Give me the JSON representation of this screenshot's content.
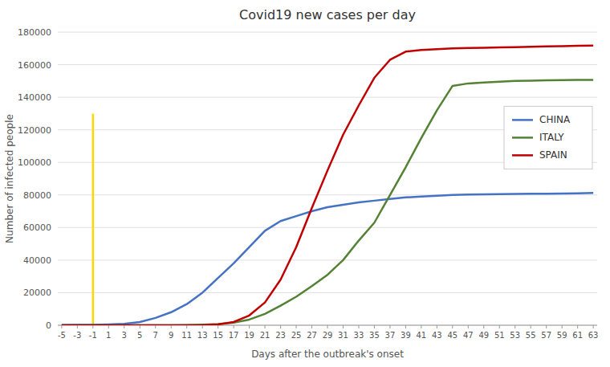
{
  "chart_data": {
    "type": "line",
    "title": "Covid19 new cases per day",
    "x_label": "Days after the outbreak's onset",
    "y_label": "Number of infected people",
    "x": [
      -5,
      -3,
      -1,
      1,
      3,
      5,
      7,
      9,
      11,
      13,
      15,
      17,
      19,
      21,
      23,
      25,
      27,
      29,
      31,
      33,
      35,
      37,
      39,
      41,
      43,
      45,
      47,
      49,
      51,
      53,
      55,
      57,
      59,
      61,
      63
    ],
    "xlim": [
      -5.5,
      63.5
    ],
    "xticks": [
      -5,
      -3,
      -1,
      1,
      3,
      5,
      7,
      9,
      11,
      13,
      15,
      17,
      19,
      21,
      23,
      25,
      27,
      29,
      31,
      33,
      35,
      37,
      39,
      41,
      43,
      45,
      47,
      49,
      51,
      53,
      55,
      57,
      59,
      61,
      63
    ],
    "ylim": [
      0,
      180000
    ],
    "yticks": [
      0,
      20000,
      40000,
      60000,
      80000,
      100000,
      120000,
      140000,
      160000,
      180000
    ],
    "grid": true,
    "legend": "right",
    "vline": {
      "x": -1,
      "ymax": 130000,
      "color": "#FFD700"
    },
    "series": [
      {
        "name": "CHINA",
        "color": "#4472C4",
        "values": [
          100,
          200,
          300,
          500,
          900,
          2000,
          4500,
          8000,
          13000,
          20000,
          29000,
          38000,
          48000,
          58000,
          64000,
          67000,
          70000,
          72500,
          74000,
          75500,
          76500,
          77500,
          78500,
          79000,
          79500,
          80000,
          80200,
          80400,
          80500,
          80600,
          80700,
          80800,
          80900,
          81000,
          81200
        ]
      },
      {
        "name": "ITALY",
        "color": "#548235",
        "values": [
          0,
          0,
          0,
          0,
          0,
          0,
          0,
          0,
          100,
          350,
          700,
          1600,
          3500,
          7000,
          12000,
          17500,
          24000,
          31000,
          40000,
          52000,
          63000,
          80000,
          97000,
          115000,
          132000,
          147000,
          148500,
          149000,
          149500,
          150000,
          150200,
          150400,
          150500,
          150600,
          150700
        ]
      },
      {
        "name": "SPAIN",
        "color": "#C00000",
        "values": [
          0,
          0,
          0,
          0,
          0,
          0,
          0,
          0,
          0,
          100,
          500,
          2000,
          6000,
          14000,
          28000,
          48000,
          72000,
          95000,
          117000,
          135000,
          152000,
          163000,
          168000,
          169000,
          169500,
          170000,
          170200,
          170400,
          170600,
          170800,
          171000,
          171200,
          171400,
          171600,
          171800
        ]
      }
    ]
  }
}
